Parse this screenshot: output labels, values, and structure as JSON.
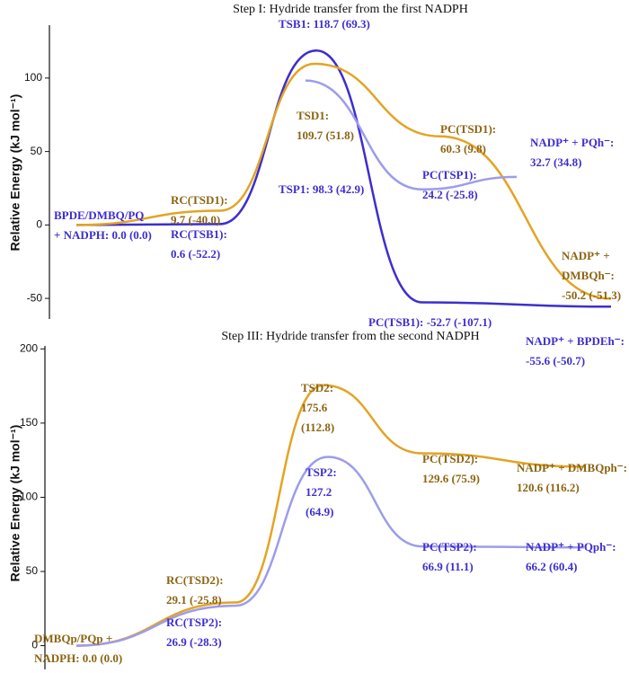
{
  "chart_data": [
    {
      "type": "line",
      "title": "Step I: Hydride transfer from the first NADPH",
      "y_label": "Relative Energy (kJ mol⁻¹)",
      "ylim": [
        -64,
        136
      ],
      "yticks": [
        -50,
        0,
        50,
        100
      ],
      "start_label": "BPDE/DMBQ/PQ\n+ NADPH: 0.0 (0.0)",
      "series": [
        {
          "color": "#3d2ecf",
          "label_color": "#3d2ecf",
          "values": [
            0.0,
            0.6,
            118.7,
            -52.7,
            -55.6
          ],
          "labels": [
            null,
            "RC(TSB1):\n0.6 (-52.2)",
            "TSB1: 118.7 (69.3)",
            "PC(TSB1): -52.7 (-107.1)",
            "NADP⁺ + BPDEh⁻:\n-55.6 (-50.7)"
          ]
        },
        {
          "color": "#e3a423",
          "label_color": "#8c6412",
          "values": [
            0.0,
            9.7,
            109.7,
            60.3,
            -50.2
          ],
          "labels": [
            null,
            "RC(TSD1):\n9.7 (-40.0)",
            "TSD1:\n109.7 (51.8)",
            "PC(TSD1):\n60.3 (9.8)",
            "NADP⁺ +\nDMBQh⁻:\n-50.2 (-51.3)"
          ]
        },
        {
          "color": "#9c9cec",
          "label_color": "#3d2ecf",
          "values": [
            0.0,
            null,
            98.3,
            24.2,
            32.7
          ],
          "labels": [
            null,
            null,
            "TSP1: 98.3 (42.9)",
            "PC(TSP1):\n24.2 (-25.8)",
            "NADP⁺ + PQh⁻:\n32.7 (34.8)"
          ]
        }
      ]
    },
    {
      "type": "line",
      "title": "Step III: Hydride transfer from the second NADPH",
      "y_label": "Relative Energy (kJ mol⁻¹)",
      "ylim": [
        -16,
        202
      ],
      "yticks": [
        0,
        50,
        100,
        150,
        200
      ],
      "start_label": "DMBQp/PQp +\nNADPH: 0.0 (0.0)",
      "series": [
        {
          "color": "#e3a423",
          "label_color": "#8c6412",
          "values": [
            0.0,
            29.1,
            175.6,
            129.6,
            120.6
          ],
          "labels": [
            null,
            "RC(TSD2):\n29.1 (-25.8)",
            "TSD2:\n175.6\n(112.8)",
            "PC(TSD2):\n129.6 (75.9)",
            "NADP⁺ + DMBQph⁻:\n120.6 (116.2)"
          ]
        },
        {
          "color": "#9c9cec",
          "label_color": "#3d2ecf",
          "values": [
            0.0,
            26.9,
            127.2,
            66.9,
            66.2
          ],
          "labels": [
            null,
            "RC(TSP2):\n26.9 (-28.3)",
            "TSP2:\n127.2\n(64.9)",
            "PC(TSP2):\n66.9 (11.1)",
            "NADP⁺ + PQph⁻:\n66.2 (60.4)"
          ]
        }
      ]
    }
  ]
}
